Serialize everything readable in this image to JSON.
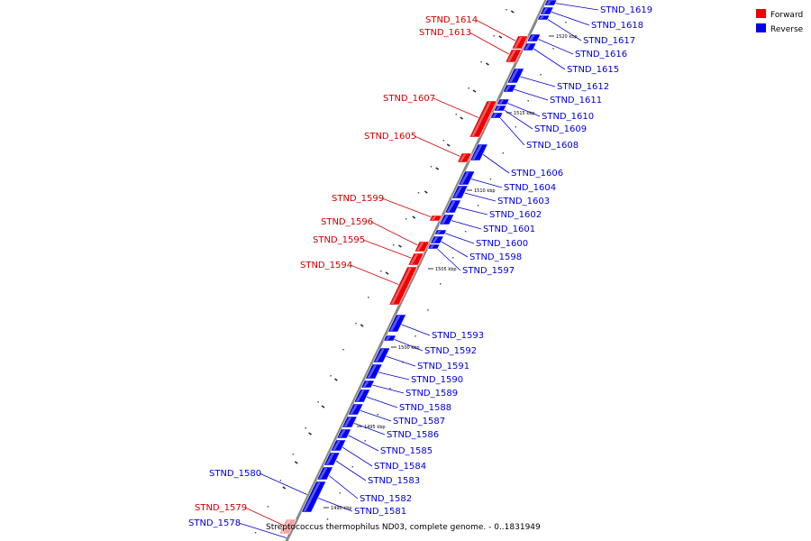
{
  "caption": "Streptococcus thermophilus ND03, complete genome. - 0..1831949",
  "legend": [
    {
      "label": "Forward",
      "color": "#ee0000"
    },
    {
      "label": "Reverse",
      "color": "#0000ee"
    }
  ],
  "colors": {
    "forward": "#ee0000",
    "reverse": "#0000ee",
    "backbone": "#888888",
    "leader_forward": "#cc0000",
    "leader_reverse": "#0000cc"
  },
  "ticks": [
    "1520 kbp",
    "1515 kbp",
    "1510 kbp",
    "1505 kbp",
    "1500 kbp",
    "1495 kbp",
    "1490 kbp"
  ],
  "genes": {
    "forward": [
      "STND_1614",
      "STND_1613",
      "STND_1607",
      "STND_1605",
      "STND_1599",
      "STND_1596",
      "STND_1595",
      "STND_1594",
      "STND_1579"
    ],
    "reverse": [
      "STND_1619",
      "STND_1618",
      "STND_1617",
      "STND_1616",
      "STND_1615",
      "STND_1612",
      "STND_1611",
      "STND_1610",
      "STND_1609",
      "STND_1608",
      "STND_1606",
      "STND_1604",
      "STND_1603",
      "STND_1602",
      "STND_1601",
      "STND_1600",
      "STND_1598",
      "STND_1597",
      "STND_1593",
      "STND_1592",
      "STND_1591",
      "STND_1590",
      "STND_1589",
      "STND_1588",
      "STND_1587",
      "STND_1586",
      "STND_1585",
      "STND_1584",
      "STND_1583",
      "STND_1582",
      "STND_1581",
      "STND_1580",
      "STND_1578"
    ]
  }
}
